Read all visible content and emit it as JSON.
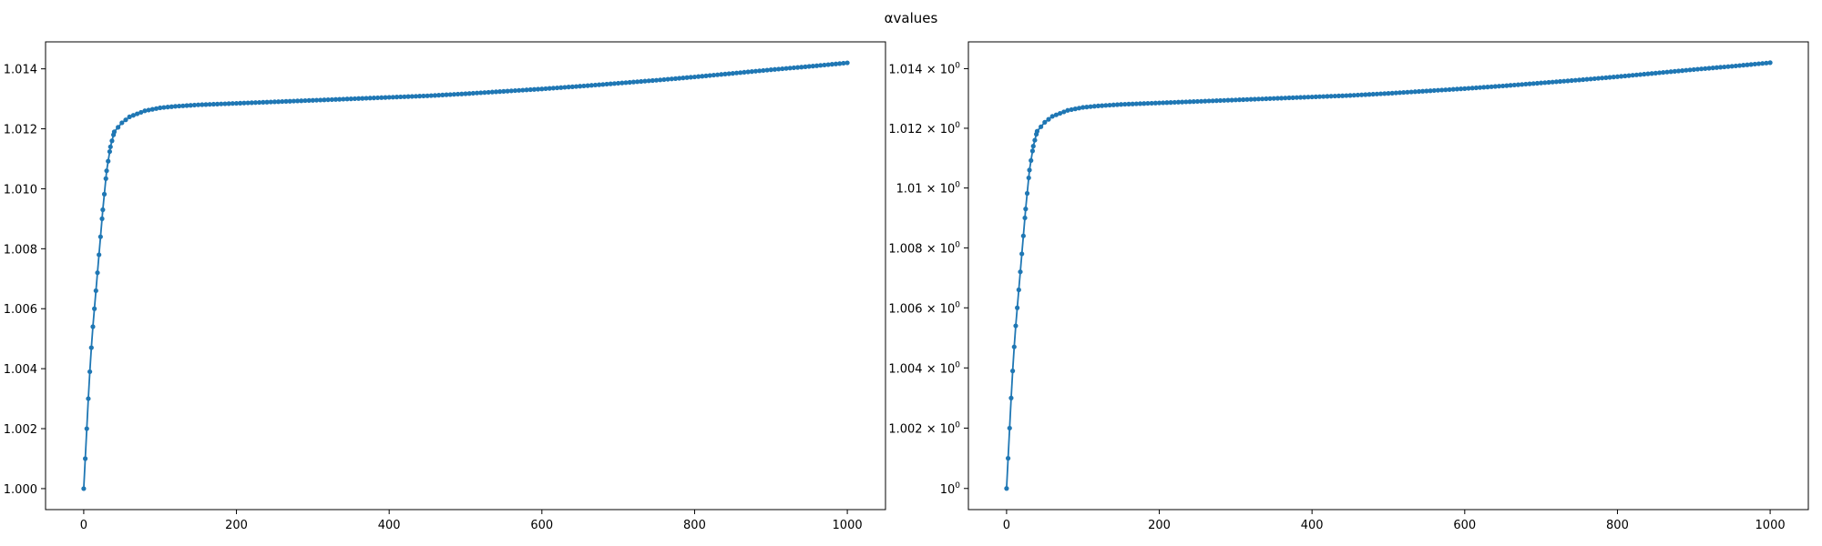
{
  "figure": {
    "title": "αvalues"
  },
  "chart_data": [
    {
      "type": "line",
      "yscale": "linear",
      "xlim": [
        -50,
        1050
      ],
      "ylim": [
        0.9993,
        1.0149
      ],
      "xticks": [
        0,
        200,
        400,
        600,
        800,
        1000
      ],
      "xtick_labels": [
        "0",
        "200",
        "400",
        "600",
        "800",
        "1000"
      ],
      "yticks": [
        1.0,
        1.002,
        1.004,
        1.006,
        1.008,
        1.01,
        1.012,
        1.014
      ],
      "ytick_labels": [
        "1.000",
        "1.002",
        "1.004",
        "1.006",
        "1.008",
        "1.010",
        "1.012",
        "1.014"
      ],
      "grid": false,
      "marker": "dot",
      "color": "#1f77b4",
      "x": [
        0,
        2,
        4,
        6,
        8,
        10,
        12,
        14,
        16,
        18,
        20,
        25,
        30,
        35,
        40,
        50,
        60,
        70,
        80,
        100,
        120,
        150,
        200,
        250,
        300,
        350,
        400,
        450,
        500,
        550,
        600,
        650,
        700,
        750,
        800,
        850,
        900,
        950,
        1000
      ],
      "y": [
        1.0,
        1.001,
        1.002,
        1.003,
        1.0039,
        1.0047,
        1.0054,
        1.006,
        1.0066,
        1.0072,
        1.0078,
        1.0093,
        1.0106,
        1.0114,
        1.0119,
        1.0122,
        1.0124,
        1.0125,
        1.0126,
        1.0127,
        1.01275,
        1.0128,
        1.01285,
        1.0129,
        1.01295,
        1.013,
        1.01305,
        1.0131,
        1.01317,
        1.01325,
        1.01333,
        1.01342,
        1.01352,
        1.01362,
        1.01373,
        1.01385,
        1.01397,
        1.01408,
        1.0142
      ]
    },
    {
      "type": "line",
      "yscale": "log",
      "xlim": [
        -50,
        1050
      ],
      "ylim": [
        0.9993,
        1.0149
      ],
      "xticks": [
        0,
        200,
        400,
        600,
        800,
        1000
      ],
      "xtick_labels": [
        "0",
        "200",
        "400",
        "600",
        "800",
        "1000"
      ],
      "yticks": [
        1.0,
        1.002,
        1.004,
        1.006,
        1.008,
        1.01,
        1.012,
        1.014
      ],
      "ytick_labels": [
        {
          "base": "10",
          "exp": "0"
        },
        {
          "base": "1.002 × 10",
          "exp": "0"
        },
        {
          "base": "1.004 × 10",
          "exp": "0"
        },
        {
          "base": "1.006 × 10",
          "exp": "0"
        },
        {
          "base": "1.008 × 10",
          "exp": "0"
        },
        {
          "base": "1.01 × 10",
          "exp": "0"
        },
        {
          "base": "1.012 × 10",
          "exp": "0"
        },
        {
          "base": "1.014 × 10",
          "exp": "0"
        }
      ],
      "grid": false,
      "marker": "dot",
      "color": "#1f77b4",
      "x": [
        0,
        2,
        4,
        6,
        8,
        10,
        12,
        14,
        16,
        18,
        20,
        25,
        30,
        35,
        40,
        50,
        60,
        70,
        80,
        100,
        120,
        150,
        200,
        250,
        300,
        350,
        400,
        450,
        500,
        550,
        600,
        650,
        700,
        750,
        800,
        850,
        900,
        950,
        1000
      ],
      "y": [
        1.0,
        1.001,
        1.002,
        1.003,
        1.0039,
        1.0047,
        1.0054,
        1.006,
        1.0066,
        1.0072,
        1.0078,
        1.0093,
        1.0106,
        1.0114,
        1.0119,
        1.0122,
        1.0124,
        1.0125,
        1.0126,
        1.0127,
        1.01275,
        1.0128,
        1.01285,
        1.0129,
        1.01295,
        1.013,
        1.01305,
        1.0131,
        1.01317,
        1.01325,
        1.01333,
        1.01342,
        1.01352,
        1.01362,
        1.01373,
        1.01385,
        1.01397,
        1.01408,
        1.0142
      ]
    }
  ]
}
